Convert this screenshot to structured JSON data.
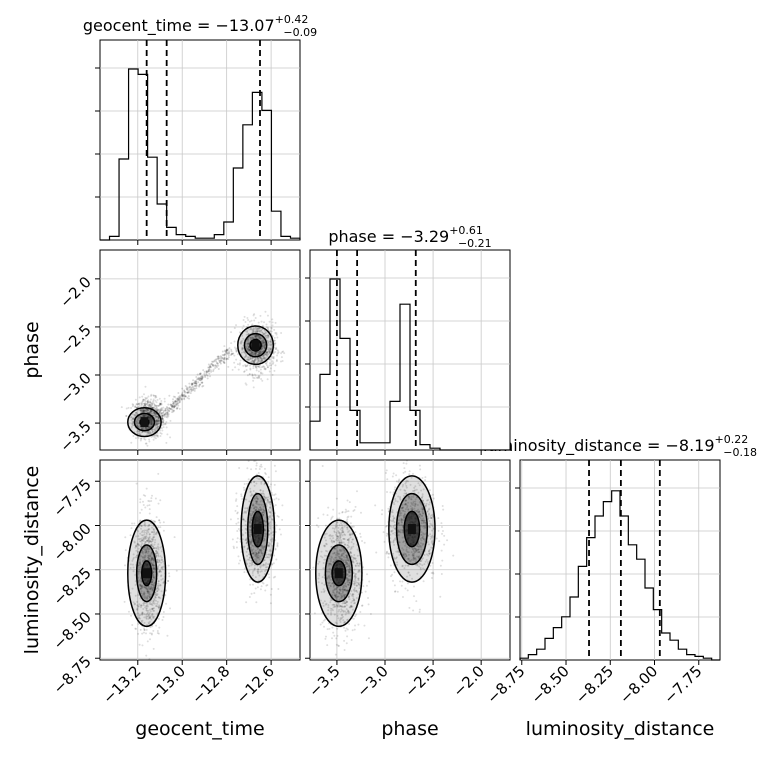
{
  "chart_data": {
    "type": "corner",
    "parameters": [
      "geocent_time",
      "phase",
      "luminosity_distance"
    ],
    "titles": [
      {
        "param": "geocent_time",
        "prefix": "geocent_time = ",
        "median": "−13.07",
        "plus": "+0.42",
        "minus": "−0.09"
      },
      {
        "param": "phase",
        "prefix": "phase = ",
        "median": "−3.29",
        "plus": "+0.61",
        "minus": "−0.21"
      },
      {
        "param": "luminosity_distance",
        "prefix": "luminosity_distance = ",
        "median": "−8.19",
        "plus": "+0.22",
        "minus": "−0.18"
      }
    ],
    "ranges": {
      "geocent_time": [
        -13.37,
        -12.47
      ],
      "phase": [
        -3.78,
        -1.7
      ],
      "luminosity_distance": [
        -8.76,
        -7.63
      ]
    },
    "ticks": {
      "geocent_time": [
        {
          "v": -13.2,
          "label": "−13.2"
        },
        {
          "v": -13.0,
          "label": "−13.0"
        },
        {
          "v": -12.8,
          "label": "−12.8"
        },
        {
          "v": -12.6,
          "label": "−12.6"
        }
      ],
      "phase": [
        {
          "v": -3.5,
          "label": "−3.5"
        },
        {
          "v": -3.0,
          "label": "−3.0"
        },
        {
          "v": -2.5,
          "label": "−2.5"
        },
        {
          "v": -2.0,
          "label": "−2.0"
        }
      ],
      "luminosity_distance": [
        {
          "v": -8.75,
          "label": "−8.75"
        },
        {
          "v": -8.5,
          "label": "−8.50"
        },
        {
          "v": -8.25,
          "label": "−8.25"
        },
        {
          "v": -8.0,
          "label": "−8.00"
        },
        {
          "v": -7.75,
          "label": "−7.75"
        }
      ]
    },
    "quantiles": {
      "geocent_time": [
        -13.16,
        -13.07,
        -12.65
      ],
      "phase": [
        -3.5,
        -3.29,
        -2.68
      ],
      "luminosity_distance": [
        -8.37,
        -8.19,
        -7.97
      ]
    },
    "histograms": {
      "geocent_time": [
        0,
        0.02,
        0.45,
        0.95,
        0.92,
        0.46,
        0.2,
        0.07,
        0.03,
        0.02,
        0.01,
        0.01,
        0.03,
        0.1,
        0.4,
        0.64,
        0.82,
        0.72,
        0.16,
        0.02,
        0.01
      ],
      "phase": [
        0.16,
        0.42,
        0.95,
        0.62,
        0.22,
        0.04,
        0.04,
        0.04,
        0.27,
        0.81,
        0.22,
        0.03,
        0.01,
        0,
        0,
        0,
        0,
        0,
        0,
        0
      ],
      "luminosity_distance": [
        0.01,
        0.03,
        0.06,
        0.12,
        0.18,
        0.24,
        0.35,
        0.52,
        0.68,
        0.8,
        0.88,
        0.94,
        0.8,
        0.64,
        0.56,
        0.4,
        0.28,
        0.15,
        0.11,
        0.06,
        0.03,
        0.02,
        0.01,
        0
      ]
    },
    "clusters": [
      {
        "gt": -13.15,
        "ph": -3.45,
        "ld": -8.27,
        "sgt": 0.035,
        "sph": 0.1,
        "sld": 0.17,
        "n": 900
      },
      {
        "gt": -12.66,
        "ph": -2.72,
        "ld": -8.02,
        "sgt": 0.04,
        "sph": 0.13,
        "sld": 0.15,
        "n": 800
      }
    ],
    "contours": {
      "phase|geocent_time": [
        [
          [
            -13.17,
            -3.49
          ],
          [
            0.02,
            0.04
          ],
          [
            0.045,
            0.09
          ],
          [
            0.075,
            0.15
          ]
        ],
        [
          [
            -12.67,
            -2.69
          ],
          [
            0.025,
            0.06
          ],
          [
            0.05,
            0.12
          ],
          [
            0.08,
            0.2
          ]
        ]
      ],
      "luminosity_distance|geocent_time": [
        [
          [
            -13.16,
            -8.27
          ],
          [
            0.022,
            0.07
          ],
          [
            0.045,
            0.16
          ],
          [
            0.085,
            0.3
          ]
        ],
        [
          [
            -12.66,
            -8.02
          ],
          [
            0.025,
            0.1
          ],
          [
            0.045,
            0.2
          ],
          [
            0.075,
            0.3
          ]
        ]
      ],
      "luminosity_distance|phase": [
        [
          [
            -3.48,
            -8.27
          ],
          [
            0.07,
            0.07
          ],
          [
            0.14,
            0.16
          ],
          [
            0.24,
            0.3
          ]
        ],
        [
          [
            -2.72,
            -8.02
          ],
          [
            0.08,
            0.1
          ],
          [
            0.16,
            0.2
          ],
          [
            0.24,
            0.3
          ]
        ]
      ]
    }
  }
}
